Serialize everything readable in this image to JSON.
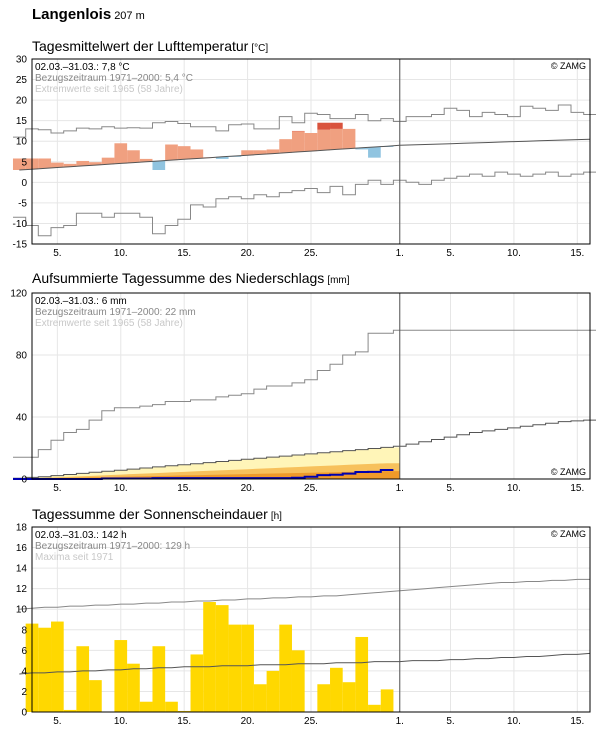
{
  "station": {
    "name": "Langenlois",
    "elevation": "207 m"
  },
  "colors": {
    "warm_anomaly": "#f0a080",
    "warm_strong": "#d9533d",
    "cold_anomaly": "#90c4e0",
    "cold_strong": "#3a7fb8",
    "sunshine": "#ffd800",
    "precip_light": "#fff5b8",
    "precip_mid": "#f7c15c",
    "precip_dark": "#ef9a2a",
    "precip_current": "#0000b0",
    "extreme_lines": "#888888",
    "normal_line": "#555555"
  },
  "x_axis": {
    "tick_labels": [
      "5.",
      "10.",
      "15.",
      "20.",
      "25.",
      "1.",
      "5.",
      "10.",
      "15."
    ],
    "tick_days": [
      5,
      10,
      15,
      20,
      25,
      32,
      36,
      41,
      46
    ],
    "month_break_day": 32,
    "xlim": [
      3,
      47
    ]
  },
  "chart_data": [
    {
      "type": "bar",
      "title": "Tagesmittelwert der Lufttemperatur",
      "unit": "[°C]",
      "annotations": [
        "02.03.–31.03.: 7,8 °C",
        "Bezugszeitraum 1971–2000: 5,4 °C",
        "Extremwerte seit 1965 (58 Jahre)"
      ],
      "copyright": "© ZAMG",
      "yticks": [
        -15,
        -10,
        -5,
        0,
        5,
        10,
        15,
        20,
        25,
        30
      ],
      "ylim": [
        -15,
        30
      ],
      "days": [
        2,
        3,
        4,
        5,
        6,
        7,
        8,
        9,
        10,
        11,
        12,
        13,
        14,
        15,
        16,
        17,
        18,
        19,
        20,
        21,
        22,
        23,
        24,
        25,
        26,
        27,
        28,
        29,
        30,
        31
      ],
      "daily_mean": [
        5.8,
        5.8,
        5.8,
        4.8,
        4.5,
        5.2,
        4.9,
        6.0,
        9.5,
        7.8,
        5.7,
        3.0,
        9.2,
        8.8,
        8.0,
        6.1,
        5.7,
        6.2,
        7.8,
        7.8,
        8.0,
        10.5,
        12.5,
        12.0,
        14.5,
        14.5,
        13.0,
        8.0,
        6.0,
        8.6
      ],
      "normal": [
        3.0,
        3.2,
        3.4,
        3.6,
        3.8,
        4.0,
        4.2,
        4.4,
        4.6,
        4.8,
        5.0,
        5.2,
        5.4,
        5.6,
        5.8,
        6.0,
        6.2,
        6.4,
        6.6,
        6.8,
        7.0,
        7.2,
        7.4,
        7.6,
        7.8,
        8.0,
        8.2,
        8.4,
        8.6,
        8.8,
        9.0,
        9.1,
        9.2,
        9.3,
        9.4,
        9.5,
        9.6,
        9.7,
        9.8,
        9.9,
        10.0,
        10.1,
        10.2,
        10.3,
        10.4,
        10.5
      ],
      "record_max": [
        11.0,
        13.0,
        12.8,
        12.0,
        12.5,
        13.2,
        13.0,
        13.5,
        13.2,
        13.3,
        13.2,
        14.5,
        14.8,
        14.3,
        13.5,
        13.5,
        12.5,
        14.0,
        14.2,
        13.0,
        13.0,
        16.0,
        14.5,
        16.8,
        16.5,
        15.5,
        15.5,
        16.5,
        15.0,
        15.5,
        14.8,
        16.0,
        16.0,
        16.5,
        18.0,
        17.5,
        16.0,
        17.0,
        16.5,
        16.0,
        18.5,
        18.0,
        17.5,
        18.8,
        17.0,
        16.5
      ],
      "record_min": [
        -8.5,
        -10.5,
        -13.0,
        -11.0,
        -10.5,
        -7.5,
        -7.5,
        -8.5,
        -7.5,
        -7.5,
        -8.5,
        -12.5,
        -10.5,
        -9.0,
        -5.5,
        -6.0,
        -4.0,
        -3.5,
        -4.0,
        -3.0,
        -3.5,
        -2.5,
        -2.0,
        -1.5,
        -2.5,
        -1.0,
        -3.0,
        -0.5,
        0.5,
        -0.5,
        0.5,
        0.0,
        -0.5,
        0.5,
        1.0,
        1.5,
        2.0,
        1.5,
        2.5,
        2.0,
        1.5,
        2.0,
        2.5,
        1.5,
        2.0,
        2.5
      ]
    },
    {
      "type": "area",
      "title": "Aufsummierte Tagessumme des Niederschlags",
      "unit": "[mm]",
      "annotations": [
        "02.03.–31.03.: 6 mm",
        "Bezugszeitraum 1971–2000: 22 mm",
        "Extremwerte seit 1965 (58 Jahre)"
      ],
      "copyright": "© ZAMG",
      "yticks": [
        0,
        40,
        80,
        120
      ],
      "ylim": [
        0,
        120
      ],
      "days": [
        2,
        3,
        4,
        5,
        6,
        7,
        8,
        9,
        10,
        11,
        12,
        13,
        14,
        15,
        16,
        17,
        18,
        19,
        20,
        21,
        22,
        23,
        24,
        25,
        26,
        27,
        28,
        29,
        30,
        31
      ],
      "cumulative": [
        0,
        0,
        0,
        0,
        0,
        0,
        0,
        0.3,
        0.3,
        0.3,
        0.3,
        0.6,
        0.6,
        0.6,
        0.6,
        0.6,
        0.6,
        0.6,
        0.6,
        0.6,
        0.6,
        0.6,
        0.8,
        1.5,
        2.5,
        2.8,
        3.5,
        4.5,
        4.6,
        5.8
      ],
      "normal_cumulative": [
        0.5,
        1.0,
        1.5,
        2.2,
        2.9,
        3.6,
        4.3,
        5.0,
        5.7,
        6.4,
        7.1,
        7.8,
        8.5,
        9.2,
        9.9,
        10.6,
        11.3,
        12.0,
        12.7,
        13.4,
        14.1,
        14.8,
        15.5,
        16.2,
        16.9,
        17.6,
        18.3,
        19.0,
        19.7,
        20.4,
        21.1,
        22.5,
        24.0,
        25.5,
        27.0,
        28.5,
        30.0,
        31.0,
        32.0,
        33.0,
        34.0,
        35.0,
        36.0,
        37.0,
        37.5,
        38.0
      ],
      "record_max_cumulative": [
        14,
        14,
        19,
        25,
        30,
        32,
        38,
        44,
        46,
        46,
        47,
        48,
        50,
        50,
        51,
        51,
        53,
        54,
        55,
        58,
        60,
        60,
        62,
        64,
        70,
        74,
        80,
        82,
        94,
        94,
        96,
        96,
        96,
        96,
        96,
        96,
        96,
        96,
        96,
        96,
        96,
        96,
        96,
        96,
        96,
        96
      ]
    },
    {
      "type": "bar",
      "title": "Tagessumme der Sonnenscheindauer",
      "unit": "[h]",
      "annotations": [
        "02.03.–31.03.: 142 h",
        "Bezugszeitraum 1971–2000: 129 h",
        "Maxima seit 1971"
      ],
      "copyright": "© ZAMG",
      "yticks": [
        0,
        2,
        4,
        6,
        8,
        10,
        12,
        14,
        16,
        18
      ],
      "ylim": [
        0,
        18
      ],
      "days": [
        3,
        4,
        5,
        6,
        7,
        8,
        9,
        10,
        11,
        12,
        13,
        14,
        15,
        16,
        17,
        18,
        19,
        20,
        21,
        22,
        23,
        24,
        25,
        26,
        27,
        28,
        29,
        30,
        31
      ],
      "values": [
        8.6,
        8.2,
        8.8,
        0.2,
        6.4,
        3.1,
        0.0,
        7.0,
        4.7,
        1.0,
        6.4,
        1.0,
        0.1,
        5.6,
        10.7,
        10.4,
        8.5,
        8.5,
        2.7,
        4.0,
        8.5,
        6.0,
        0.0,
        2.7,
        4.3,
        2.9,
        7.3,
        0.7,
        2.2
      ],
      "normal": [
        3.7,
        3.8,
        3.8,
        3.9,
        3.9,
        4.0,
        4.0,
        4.1,
        4.1,
        4.2,
        4.2,
        4.3,
        4.3,
        4.4,
        4.4,
        4.4,
        4.5,
        4.5,
        4.5,
        4.6,
        4.6,
        4.6,
        4.7,
        4.7,
        4.7,
        4.8,
        4.8,
        4.8,
        4.9,
        4.9,
        4.9,
        5.0,
        5.0,
        5.0,
        5.1,
        5.1,
        5.2,
        5.2,
        5.3,
        5.3,
        5.4,
        5.4,
        5.5,
        5.6,
        5.6,
        5.7
      ],
      "maxima": [
        10.0,
        10.1,
        10.2,
        10.2,
        10.3,
        10.3,
        10.4,
        10.4,
        10.5,
        10.5,
        10.6,
        10.6,
        10.7,
        10.7,
        10.8,
        10.8,
        10.9,
        10.9,
        11.0,
        11.0,
        11.1,
        11.1,
        11.2,
        11.2,
        11.3,
        11.3,
        11.4,
        11.5,
        11.6,
        11.7,
        11.8,
        11.9,
        12.0,
        12.1,
        12.2,
        12.3,
        12.4,
        12.5,
        12.6,
        12.6,
        12.7,
        12.7,
        12.8,
        12.8,
        12.9,
        12.9
      ]
    }
  ]
}
